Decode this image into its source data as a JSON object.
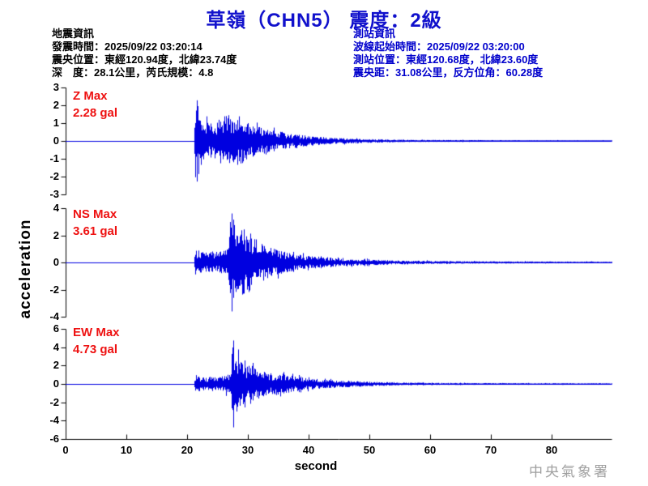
{
  "title": "草嶺（CHN5） 震度：2級",
  "earthquake_info": {
    "heading": "地震資訊",
    "lines": [
      "發震時間：2025/09/22 03:20:14",
      "震央位置：東經120.94度，北緯23.74度",
      "深　度：28.1公里，芮氏規模：4.8"
    ]
  },
  "station_info": {
    "heading": "測站資訊",
    "lines": [
      "波線起始時間：2025/09/22 03:20:00",
      "測站位置：東經120.68度，北緯23.60度",
      "震央距：31.08公里，反方位角：60.28度"
    ]
  },
  "watermark": "中央氣象署",
  "colors": {
    "title_blue": "#1111cc",
    "station_blue": "#0000cc",
    "wave_blue": "#0000e0",
    "max_red": "#ee1111",
    "axis_black": "#000000",
    "watermark_gray": "#a0a0a0"
  },
  "chart_data": {
    "type": "line",
    "subtype": "seismic-waveform",
    "xlabel": "second",
    "ylabel": "acceleration",
    "x_range": [
      0,
      89.9
    ],
    "x_ticks": [
      0,
      10,
      20,
      30,
      40,
      50,
      60,
      70,
      80
    ],
    "grid": false,
    "traces": [
      {
        "name": "Z",
        "max_label": "Z Max",
        "max_value_label": "2.28 gal",
        "max_gal": 2.28,
        "ylim": [
          -3,
          3
        ],
        "y_ticks": [
          3,
          2,
          1,
          0,
          -1,
          -2,
          -3
        ],
        "p_arrival_s": 21.1,
        "peak_time_s": 21.6,
        "seed": 11,
        "envelope": [
          [
            0,
            0
          ],
          [
            21.1,
            0
          ],
          [
            21.35,
            2.28
          ],
          [
            21.9,
            1.9
          ],
          [
            22.4,
            1.2
          ],
          [
            23.5,
            1.0
          ],
          [
            24.5,
            1.05
          ],
          [
            25.4,
            1.25
          ],
          [
            26.3,
            1.6
          ],
          [
            27.3,
            1.4
          ],
          [
            28.3,
            1.5
          ],
          [
            29.5,
            1.1
          ],
          [
            31,
            0.85
          ],
          [
            33,
            0.68
          ],
          [
            35,
            0.55
          ],
          [
            37,
            0.42
          ],
          [
            40,
            0.28
          ],
          [
            44,
            0.18
          ],
          [
            48,
            0.12
          ],
          [
            53,
            0.08
          ],
          [
            58,
            0.06
          ],
          [
            65,
            0.05
          ],
          [
            75,
            0.04
          ],
          [
            90,
            0.035
          ]
        ]
      },
      {
        "name": "NS",
        "max_label": "NS Max",
        "max_value_label": "3.61 gal",
        "max_gal": 3.61,
        "ylim": [
          -4,
          4
        ],
        "y_ticks": [
          4,
          2,
          0,
          -2,
          -4
        ],
        "p_arrival_s": 21.1,
        "peak_time_s": 27.3,
        "seed": 22,
        "envelope": [
          [
            0,
            0
          ],
          [
            21.1,
            0
          ],
          [
            21.3,
            1.0
          ],
          [
            22,
            0.85
          ],
          [
            23,
            0.72
          ],
          [
            24,
            0.85
          ],
          [
            25,
            0.78
          ],
          [
            26,
            0.92
          ],
          [
            26.8,
            1.3
          ],
          [
            27.15,
            3.61
          ],
          [
            27.9,
            2.9
          ],
          [
            28.6,
            2.2
          ],
          [
            29.3,
            2.7
          ],
          [
            30.2,
            2.3
          ],
          [
            31,
            1.8
          ],
          [
            32,
            1.5
          ],
          [
            33.5,
            1.15
          ],
          [
            35,
            0.9
          ],
          [
            37,
            0.7
          ],
          [
            39,
            0.55
          ],
          [
            41,
            0.45
          ],
          [
            44,
            0.35
          ],
          [
            47,
            0.27
          ],
          [
            50,
            0.21
          ],
          [
            54,
            0.16
          ],
          [
            58,
            0.13
          ],
          [
            63,
            0.1
          ],
          [
            70,
            0.08
          ],
          [
            90,
            0.06
          ]
        ]
      },
      {
        "name": "EW",
        "max_label": "EW Max",
        "max_value_label": "4.73 gal",
        "max_gal": 4.73,
        "ylim": [
          -6,
          6
        ],
        "y_ticks": [
          6,
          4,
          2,
          0,
          -2,
          -4,
          -6
        ],
        "p_arrival_s": 21.1,
        "peak_time_s": 27.6,
        "seed": 33,
        "envelope": [
          [
            0,
            0
          ],
          [
            21.1,
            0
          ],
          [
            21.3,
            0.95
          ],
          [
            22,
            0.8
          ],
          [
            23,
            0.7
          ],
          [
            24,
            0.82
          ],
          [
            25,
            0.75
          ],
          [
            26,
            0.88
          ],
          [
            27,
            1.2
          ],
          [
            27.45,
            4.73
          ],
          [
            28.1,
            3.1
          ],
          [
            28.8,
            2.4
          ],
          [
            29.6,
            2.0
          ],
          [
            30.4,
            2.3
          ],
          [
            31.5,
            1.7
          ],
          [
            32.6,
            1.45
          ],
          [
            34,
            1.1
          ],
          [
            35.3,
            1.4
          ],
          [
            36.5,
            1.0
          ],
          [
            38,
            0.8
          ],
          [
            40,
            0.62
          ],
          [
            42,
            0.5
          ],
          [
            45,
            0.38
          ],
          [
            48,
            0.3
          ],
          [
            51,
            0.22
          ],
          [
            55,
            0.16
          ],
          [
            60,
            0.12
          ],
          [
            67,
            0.1
          ],
          [
            75,
            0.085
          ],
          [
            90,
            0.07
          ]
        ]
      }
    ]
  }
}
